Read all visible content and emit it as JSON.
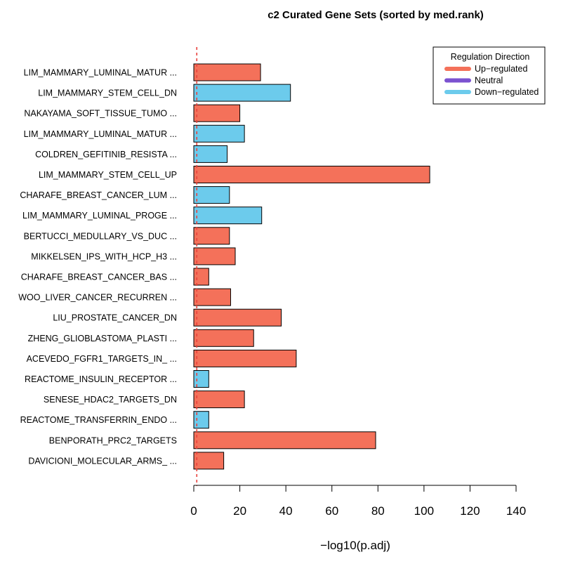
{
  "chart_data": {
    "type": "bar",
    "orientation": "horizontal",
    "title": "c2 Curated Gene Sets (sorted by med.rank)",
    "xlabel": "−log10(p.adj)",
    "xlim": [
      0,
      140
    ],
    "xticks": [
      0,
      20,
      40,
      60,
      80,
      100,
      120,
      140
    ],
    "threshold_line": {
      "value": 1.3,
      "color": "#e8413c",
      "style": "dashed"
    },
    "categories": [
      "LIM_MAMMARY_LUMINAL_MATUR ...",
      "LIM_MAMMARY_STEM_CELL_DN",
      "NAKAYAMA_SOFT_TISSUE_TUMO ...",
      "LIM_MAMMARY_LUMINAL_MATUR ...",
      "COLDREN_GEFITINIB_RESISTA ...",
      "LIM_MAMMARY_STEM_CELL_UP",
      "CHARAFE_BREAST_CANCER_LUM ...",
      "LIM_MAMMARY_LUMINAL_PROGE ...",
      "BERTUCCI_MEDULLARY_VS_DUC ...",
      "MIKKELSEN_IPS_WITH_HCP_H3 ...",
      "CHARAFE_BREAST_CANCER_BAS ...",
      "WOO_LIVER_CANCER_RECURREN ...",
      "LIU_PROSTATE_CANCER_DN",
      "ZHENG_GLIOBLASTOMA_PLASTI ...",
      "ACEVEDO_FGFR1_TARGETS_IN_ ...",
      "REACTOME_INSULIN_RECEPTOR ...",
      "SENESE_HDAC2_TARGETS_DN",
      "REACTOME_TRANSFERRIN_ENDO ...",
      "BENPORATH_PRC2_TARGETS",
      "DAVICIONI_MOLECULAR_ARMS_ ..."
    ],
    "values": [
      29,
      42,
      20,
      22,
      14.5,
      102.5,
      15.5,
      29.5,
      15.5,
      18,
      6.5,
      16,
      38,
      26,
      44.5,
      6.5,
      22,
      6.5,
      79,
      13
    ],
    "direction": [
      "up",
      "down",
      "up",
      "down",
      "down",
      "up",
      "down",
      "down",
      "up",
      "up",
      "up",
      "up",
      "up",
      "up",
      "up",
      "down",
      "up",
      "down",
      "up",
      "up"
    ],
    "legend": {
      "title": "Regulation Direction",
      "placement": "top-right",
      "entries": [
        {
          "key": "up",
          "label": "Up−regulated",
          "color": "#f4715a"
        },
        {
          "key": "neutral",
          "label": "Neutral",
          "color": "#7b52d0"
        },
        {
          "key": "down",
          "label": "Down−regulated",
          "color": "#6ccbec"
        }
      ]
    }
  }
}
